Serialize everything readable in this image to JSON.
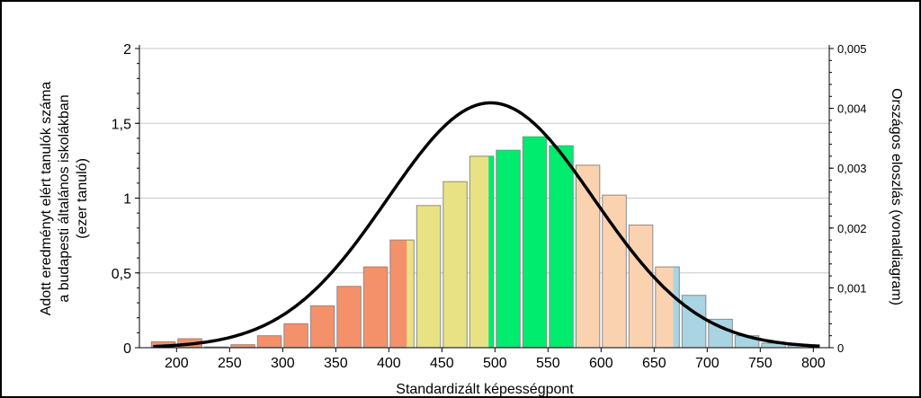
{
  "chart_data": {
    "type": "bar",
    "title": "",
    "xlabel": "Standardizált képességpont",
    "ylabel_left": [
      "Adott eredményt elért tanulók száma",
      "a budapesti általános iskolákban",
      "(ezer tanuló)"
    ],
    "ylabel_right": "Országos eloszlás (vonaldiagram)",
    "xlim": [
      165,
      815
    ],
    "ylim_left": [
      0,
      2
    ],
    "ylim_right": [
      0,
      0.005
    ],
    "x_ticks": [
      "200",
      "250",
      "300",
      "350",
      "400",
      "450",
      "500",
      "550",
      "600",
      "650",
      "700",
      "750",
      "800"
    ],
    "x_tick_values": [
      200,
      250,
      300,
      350,
      400,
      450,
      500,
      550,
      600,
      650,
      700,
      750,
      800
    ],
    "y_left_ticks": [
      "0",
      "0,5",
      "1",
      "1,5",
      "2"
    ],
    "y_left_tick_values": [
      0,
      0.5,
      1,
      1.5,
      2
    ],
    "y_right_ticks": [
      "0",
      "0,001",
      "0,002",
      "0,003",
      "0,004",
      "0,005"
    ],
    "y_right_tick_values": [
      0,
      0.001,
      0.002,
      0.003,
      0.004,
      0.005
    ],
    "grid": true,
    "bin_width": 25,
    "bar_series": {
      "x_centers": [
        187.5,
        212.5,
        237.5,
        262.5,
        287.5,
        312.5,
        337.5,
        362.5,
        387.5,
        412.5,
        437.5,
        462.5,
        487.5,
        512.5,
        537.5,
        562.5,
        587.5,
        612.5,
        637.5,
        662.5,
        687.5,
        712.5,
        737.5,
        762.5,
        787.5
      ],
      "values": [
        0.04,
        0.06,
        0.005,
        0.02,
        0.08,
        0.16,
        0.28,
        0.41,
        0.54,
        0.72,
        0.95,
        1.11,
        1.28,
        1.32,
        1.41,
        1.35,
        1.22,
        1.02,
        0.82,
        0.54,
        0.35,
        0.19,
        0.08,
        0.03,
        0.015
      ],
      "color_bands": [
        {
          "from": 165,
          "to": 417,
          "color": "#f4916b"
        },
        {
          "from": 417,
          "to": 494,
          "color": "#e8e284"
        },
        {
          "from": 494,
          "to": 577,
          "color": "#00ec6e"
        },
        {
          "from": 577,
          "to": 668,
          "color": "#fbd2b0"
        },
        {
          "from": 668,
          "to": 815,
          "color": "#a8d4e3"
        }
      ]
    },
    "line_series": {
      "mean": 496,
      "sd": 97.5,
      "x_start": 178,
      "x_end": 806,
      "color": "#000000"
    }
  }
}
